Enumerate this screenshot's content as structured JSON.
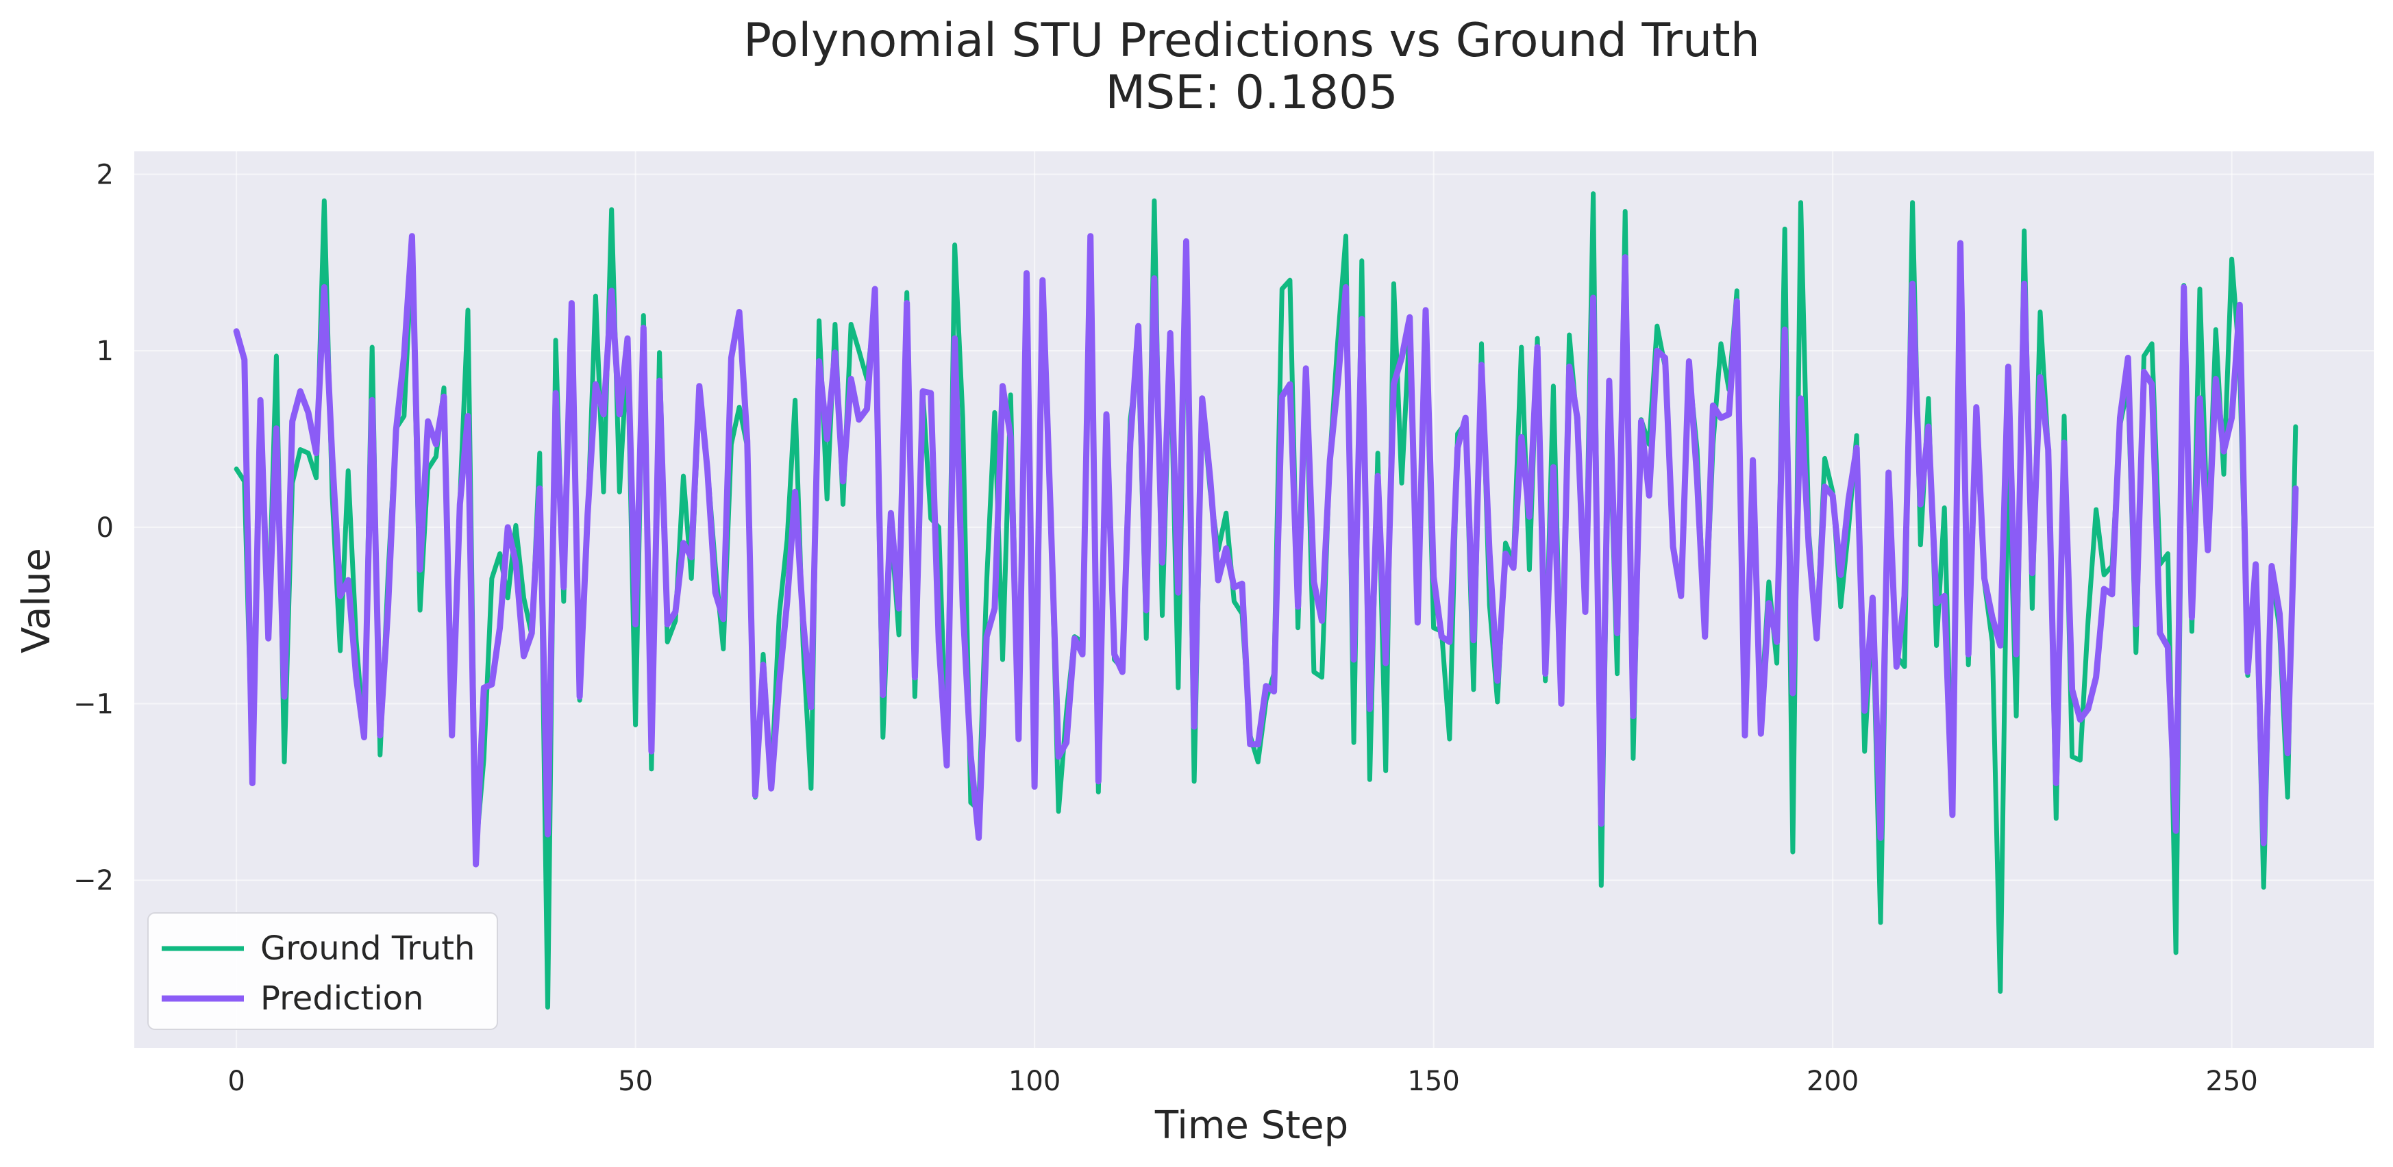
{
  "chart_data": {
    "type": "line",
    "title": "Polynomial STU Predictions vs Ground Truth",
    "subtitle": "MSE: 0.1805",
    "xlabel": "Time Step",
    "ylabel": "Value",
    "xlim": [
      -12.8,
      267.8
    ],
    "ylim": [
      -2.95,
      2.13
    ],
    "xticks": [
      0,
      50,
      100,
      150,
      200,
      250
    ],
    "yticks": [
      2,
      1,
      0,
      -1,
      -2
    ],
    "ytick_labels": [
      "2",
      "1",
      "0",
      "−1",
      "−2"
    ],
    "xtick_labels": [
      "0",
      "50",
      "100",
      "150",
      "200",
      "250"
    ],
    "grid": true,
    "legend_position": "lower-left",
    "background": "#eaeaf2",
    "series": [
      {
        "name": "Ground Truth",
        "color": "#10b981",
        "values": [
          0.33,
          0.26,
          -1.36,
          0.65,
          -0.57,
          0.97,
          -1.33,
          0.25,
          0.44,
          0.42,
          0.28,
          1.85,
          0.18,
          -0.7,
          0.32,
          -0.64,
          -1.19,
          1.02,
          -1.29,
          -0.27,
          0.56,
          0.63,
          1.57,
          -0.47,
          0.33,
          0.4,
          0.79,
          -1.17,
          0.15,
          1.23,
          -1.84,
          -1.31,
          -0.29,
          -0.15,
          -0.4,
          0.01,
          -0.4,
          -0.61,
          0.42,
          -2.72,
          1.06,
          -0.42,
          1.22,
          -0.98,
          0.02,
          1.31,
          0.2,
          1.8,
          0.2,
          1.01,
          -1.12,
          1.2,
          -1.37,
          0.99,
          -0.65,
          -0.53,
          0.29,
          -0.29,
          0.75,
          0.35,
          -0.22,
          -0.69,
          0.47,
          0.68,
          0.46,
          -1.53,
          -0.72,
          -1.47,
          -0.5,
          -0.07,
          0.72,
          -0.67,
          -1.48,
          1.17,
          0.16,
          1.15,
          0.13,
          1.15,
          1.0,
          0.84,
          1.25,
          -1.19,
          0.01,
          -0.61,
          1.33,
          -0.96,
          0.76,
          0.05,
          0.0,
          -1.33,
          1.6,
          0.62,
          -1.56,
          -1.6,
          -0.31,
          0.65,
          -0.75,
          0.75,
          -1.19,
          1.38,
          -1.47,
          1.38,
          0.11,
          -1.61,
          -1.05,
          -0.62,
          -0.65,
          1.64,
          -1.5,
          0.6,
          -0.75,
          -0.8,
          0.61,
          0.98,
          -0.63,
          1.85,
          -0.5,
          1.05,
          -0.91,
          1.58,
          -1.44,
          0.71,
          0.21,
          -0.13,
          0.08,
          -0.42,
          -0.49,
          -1.18,
          -1.33,
          -0.98,
          -0.83,
          1.35,
          1.4,
          -0.57,
          0.9,
          -0.82,
          -0.85,
          0.39,
          1.06,
          1.65,
          -1.22,
          1.51,
          -1.43,
          0.42,
          -1.38,
          1.38,
          0.25,
          1.14,
          -0.54,
          1.17,
          -0.57,
          -0.59,
          -1.2,
          0.53,
          0.59,
          -0.92,
          1.04,
          -0.44,
          -0.99,
          -0.09,
          -0.2,
          1.02,
          -0.24,
          1.07,
          -0.87,
          0.8,
          -1.0,
          1.09,
          0.57,
          -0.48,
          1.89,
          -2.03,
          0.7,
          -0.83,
          1.79,
          -1.31,
          0.61,
          0.47,
          1.14,
          0.91,
          -0.13,
          -0.32,
          0.91,
          0.44,
          -0.62,
          0.47,
          1.04,
          0.78,
          1.34,
          -1.1,
          0.36,
          -1.06,
          -0.31,
          -0.77,
          1.69,
          -1.84,
          1.84,
          -0.03,
          -0.61,
          0.39,
          0.2,
          -0.45,
          0.0,
          0.52,
          -1.27,
          -0.44,
          -2.24,
          0.29,
          -0.73,
          -0.79,
          1.84,
          -0.1,
          0.73,
          -0.67,
          0.11,
          -1.58,
          1.57,
          -0.78,
          0.58,
          -0.31,
          -0.65,
          -2.63,
          0.48,
          -1.07,
          1.68,
          -0.46,
          1.22,
          0.44,
          -1.65,
          0.63,
          -1.3,
          -1.32,
          -0.53,
          0.1,
          -0.27,
          -0.22,
          0.58,
          0.8,
          -0.71,
          0.97,
          1.04,
          -0.21,
          -0.15,
          -2.41,
          1.37,
          -0.59,
          1.35,
          -0.09,
          1.12,
          0.3,
          1.52,
          0.92,
          -0.84,
          -0.24,
          -2.04,
          -0.26,
          -0.58,
          -1.53,
          0.57
        ]
      },
      {
        "name": "Prediction",
        "color": "#8b5cf6",
        "values": [
          1.11,
          0.95,
          -1.45,
          0.72,
          -0.63,
          0.56,
          -0.96,
          0.6,
          0.77,
          0.65,
          0.42,
          1.36,
          0.4,
          -0.39,
          -0.3,
          -0.85,
          -1.19,
          0.72,
          -1.18,
          -0.45,
          0.55,
          0.97,
          1.65,
          -0.24,
          0.6,
          0.47,
          0.74,
          -1.18,
          0.13,
          0.63,
          -1.91,
          -0.91,
          -0.89,
          -0.57,
          0.0,
          -0.2,
          -0.73,
          -0.6,
          0.22,
          -1.74,
          0.76,
          -0.34,
          1.27,
          -0.96,
          0.07,
          0.81,
          0.64,
          1.34,
          0.64,
          1.07,
          -0.55,
          1.13,
          -1.27,
          0.83,
          -0.55,
          -0.48,
          -0.09,
          -0.17,
          0.8,
          0.33,
          -0.37,
          -0.52,
          0.96,
          1.22,
          0.49,
          -1.52,
          -0.78,
          -1.48,
          -0.89,
          -0.42,
          0.2,
          -0.53,
          -1.02,
          0.94,
          0.5,
          0.99,
          0.26,
          0.84,
          0.61,
          0.67,
          1.35,
          -0.95,
          0.08,
          -0.46,
          1.27,
          -0.85,
          0.77,
          0.76,
          -0.65,
          -1.35,
          1.07,
          -0.45,
          -1.29,
          -1.76,
          -0.62,
          -0.46,
          0.8,
          0.51,
          -1.2,
          1.44,
          -1.47,
          1.4,
          0.1,
          -1.3,
          -1.22,
          -0.63,
          -0.72,
          1.65,
          -1.44,
          0.64,
          -0.72,
          -0.82,
          0.48,
          1.14,
          -0.47,
          1.41,
          -0.2,
          1.1,
          -0.37,
          1.62,
          -1.13,
          0.73,
          0.28,
          -0.3,
          -0.12,
          -0.34,
          -0.32,
          -1.23,
          -1.23,
          -0.9,
          -0.93,
          0.74,
          0.81,
          -0.45,
          0.9,
          -0.31,
          -0.53,
          0.38,
          0.82,
          1.36,
          -0.75,
          1.18,
          -1.03,
          0.29,
          -0.77,
          0.81,
          0.96,
          1.19,
          -0.54,
          1.23,
          -0.28,
          -0.62,
          -0.65,
          0.45,
          0.62,
          -0.64,
          0.92,
          -0.15,
          -0.87,
          -0.15,
          -0.23,
          0.51,
          0.06,
          1.02,
          -0.83,
          0.34,
          -1.0,
          0.91,
          0.62,
          -0.48,
          1.3,
          -1.68,
          0.83,
          -0.6,
          1.53,
          -1.07,
          0.6,
          0.18,
          1.0,
          0.96,
          -0.11,
          -0.39,
          0.94,
          0.28,
          -0.62,
          0.69,
          0.62,
          0.64,
          1.28,
          -1.18,
          0.38,
          -1.17,
          -0.43,
          -0.65,
          1.12,
          -0.94,
          0.73,
          -0.11,
          -0.63,
          0.23,
          0.18,
          -0.27,
          0.16,
          0.45,
          -1.04,
          -0.4,
          -1.76,
          0.31,
          -0.79,
          -0.39,
          1.38,
          0.13,
          0.57,
          -0.43,
          -0.39,
          -1.63,
          1.61,
          -0.72,
          0.68,
          -0.29,
          -0.51,
          -0.67,
          0.91,
          -0.72,
          1.38,
          -0.26,
          0.85,
          0.44,
          -1.45,
          0.48,
          -0.92,
          -1.09,
          -1.03,
          -0.85,
          -0.35,
          -0.38,
          0.62,
          0.96,
          -0.55,
          0.88,
          0.81,
          -0.6,
          -0.68,
          -1.72,
          1.36,
          -0.51,
          0.73,
          -0.13,
          0.84,
          0.43,
          0.62,
          1.26,
          -0.82,
          -0.21,
          -1.79,
          -0.22,
          -0.49,
          -1.28,
          0.22
        ]
      }
    ]
  }
}
